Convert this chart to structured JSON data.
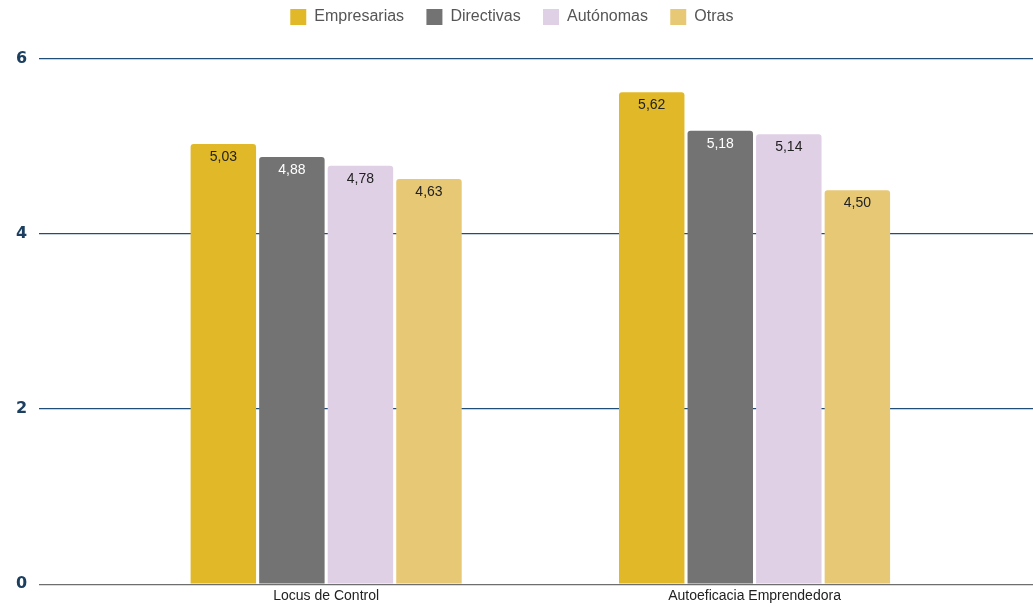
{
  "chart_data": {
    "type": "bar",
    "categories": [
      "Locus de Control",
      "Autoeficacia Emprendedora"
    ],
    "series": [
      {
        "name": "Empresarias",
        "color": "#e1b928",
        "values": [
          5.03,
          5.62
        ],
        "value_labels": [
          "5,03",
          "5,62"
        ]
      },
      {
        "name": "Directivas",
        "color": "#737373",
        "values": [
          4.88,
          5.18
        ],
        "value_labels": [
          "4,88",
          "5,18"
        ]
      },
      {
        "name": "Autónomas",
        "color": "#dfd0e6",
        "values": [
          4.78,
          5.14
        ],
        "value_labels": [
          "4,78",
          "5,14"
        ]
      },
      {
        "name": "Otras",
        "color": "#e6c875",
        "values": [
          4.63,
          4.5
        ],
        "value_labels": [
          "4,63",
          "4,50"
        ]
      }
    ],
    "ylim": [
      0,
      6
    ],
    "yticks": [
      0,
      2,
      4,
      6
    ],
    "grid": "y",
    "legend": "top"
  }
}
